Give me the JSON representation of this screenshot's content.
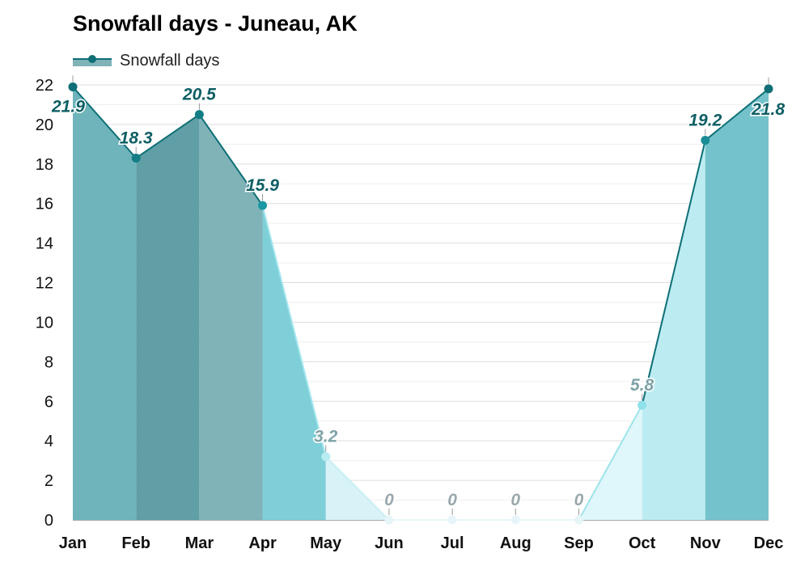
{
  "title": "Snowfall days - Juneau, AK",
  "legend": {
    "label": "Snowfall days"
  },
  "colors": {
    "line_dark": "#0e6f76",
    "marker_dark": "#0e6f76",
    "fill_jan": "#6fb4bb",
    "fill_feb": "#5f9fa5",
    "fill_mar": "#7fb3b8",
    "fill_apr": "#7ecfd7",
    "fill_may": "#d8f3f7",
    "fill_jun": "#eef9fb",
    "fill_sep": "#dff6fa",
    "fill_oct": "#bcecf2",
    "fill_nov": "#74c2cb",
    "fill_dec": "#7fa9ad",
    "label_dark": "#0d5e64",
    "label_light": "#7fa2a7",
    "label_zero": "#9aa8ad"
  },
  "chart_data": {
    "type": "area",
    "title": "Snowfall days - Juneau, AK",
    "categories": [
      "Jan",
      "Feb",
      "Mar",
      "Apr",
      "May",
      "Jun",
      "Jul",
      "Aug",
      "Sep",
      "Oct",
      "Nov",
      "Dec"
    ],
    "series": [
      {
        "name": "Snowfall days",
        "values": [
          21.9,
          18.3,
          20.5,
          15.9,
          3.2,
          0,
          0,
          0,
          0,
          5.8,
          19.2,
          21.8
        ]
      }
    ],
    "labels": [
      "21.9",
      "18.3",
      "20.5",
      "15.9",
      "3.2",
      "0",
      "0",
      "0",
      "0",
      "5.8",
      "19.2",
      "21.8"
    ],
    "y_ticks": [
      "0",
      "2",
      "4",
      "6",
      "8",
      "10",
      "12",
      "14",
      "16",
      "18",
      "20",
      "22"
    ],
    "ylim": [
      0,
      22
    ],
    "grid": true,
    "legend_position": "top-left"
  }
}
